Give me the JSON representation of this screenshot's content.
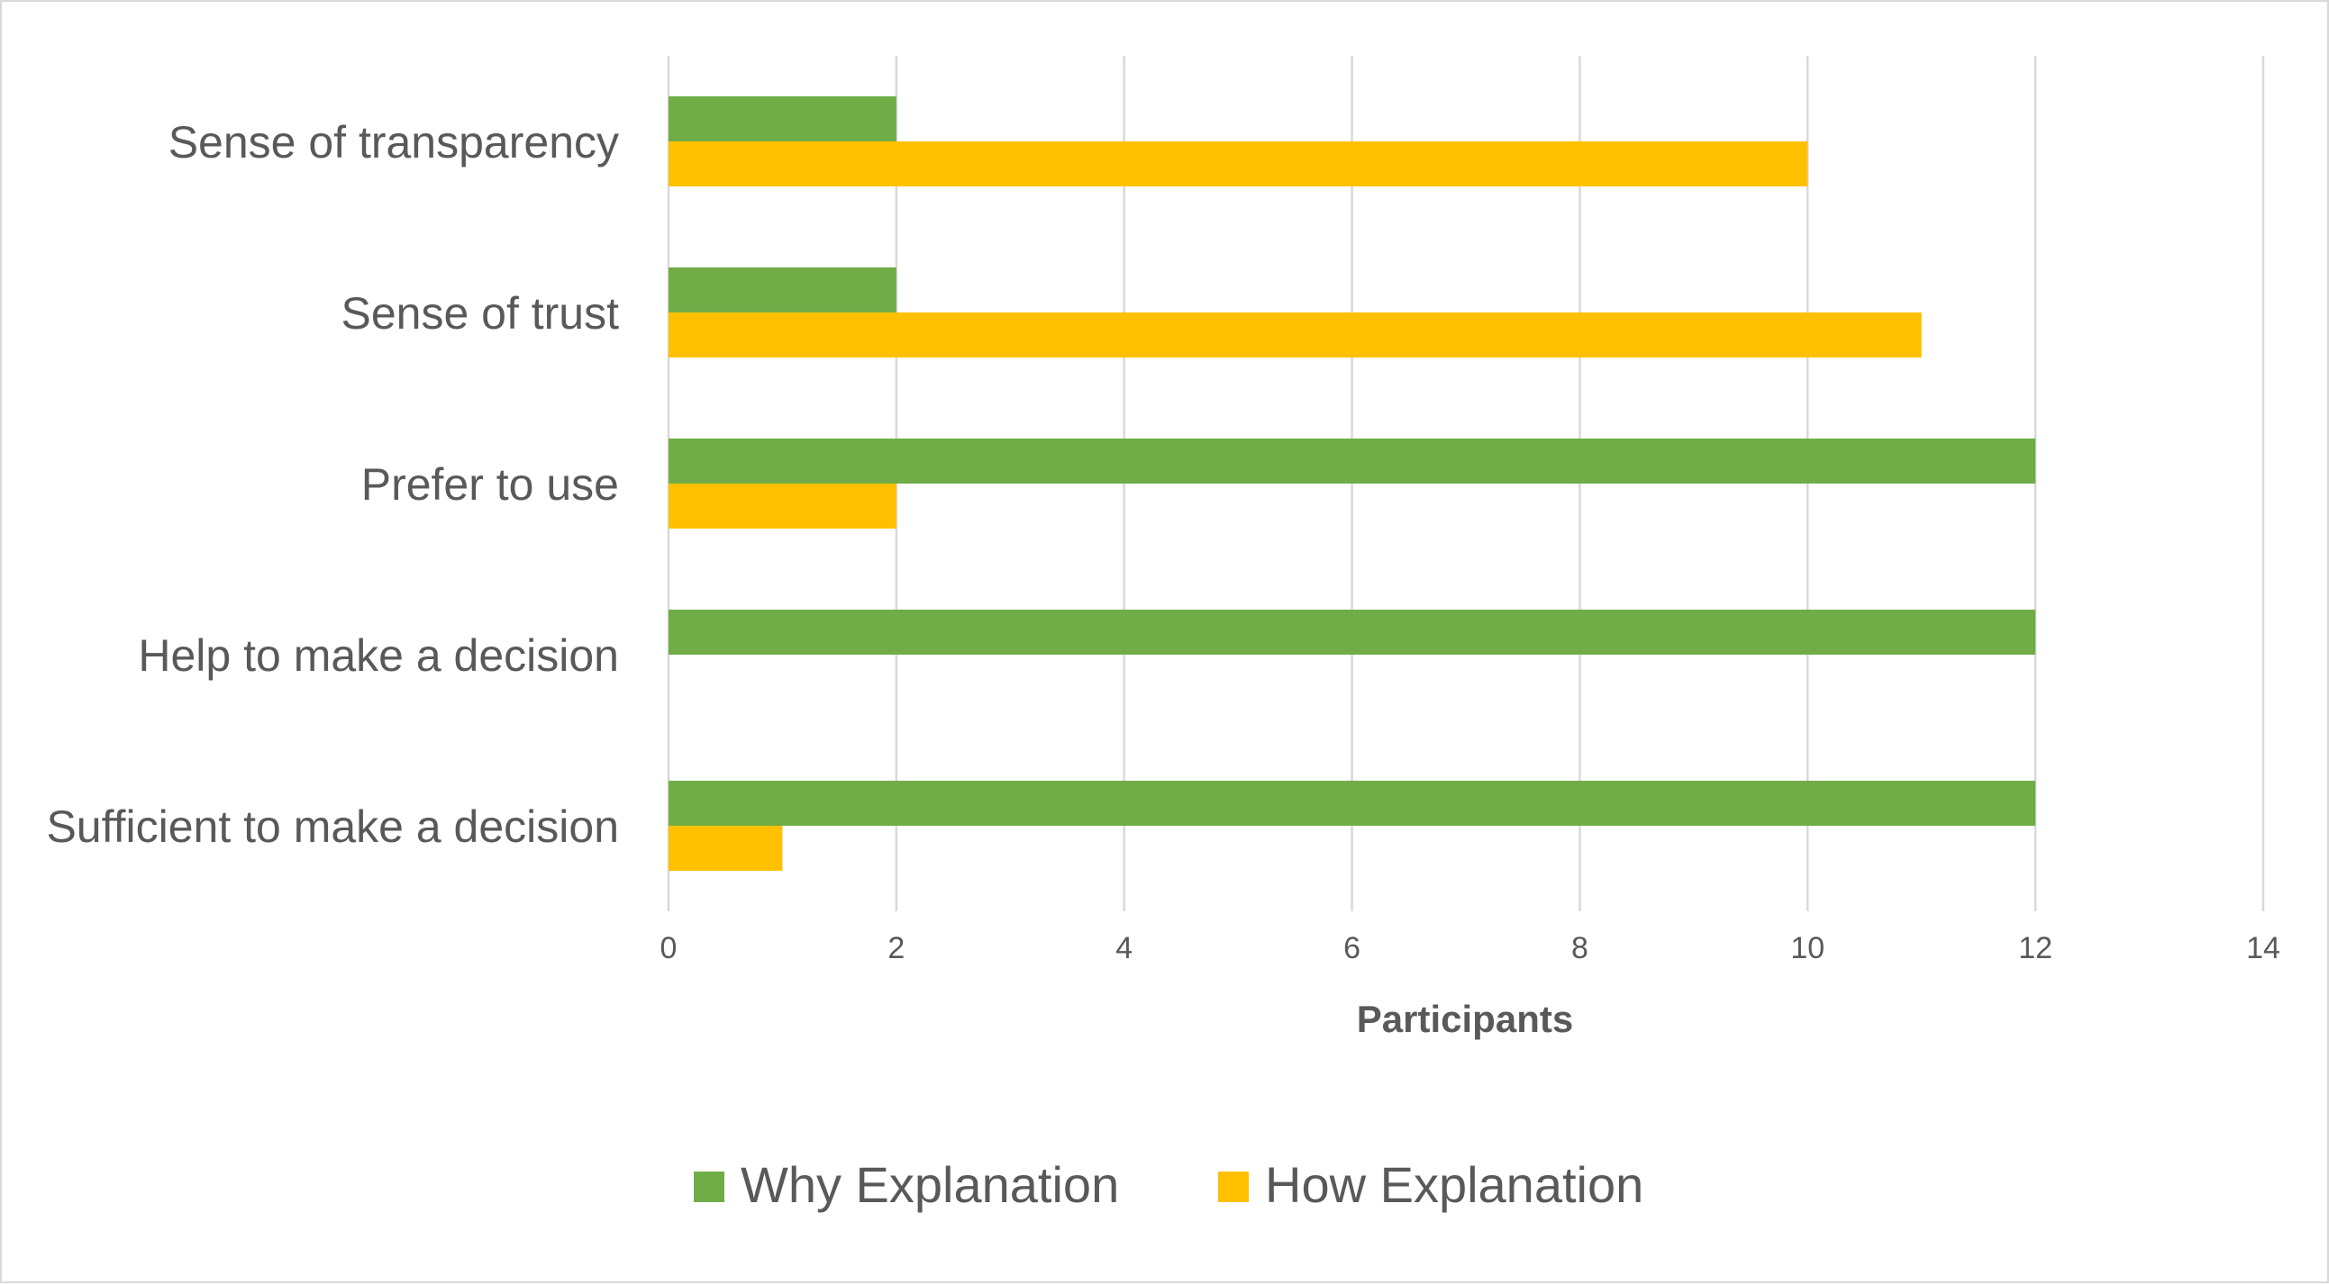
{
  "chart_data": {
    "type": "bar",
    "orientation": "horizontal",
    "categories": [
      "Sense of transparency",
      "Sense of trust",
      "Prefer to use",
      "Help to make a decision",
      "Sufficient to make a decision"
    ],
    "series": [
      {
        "name": "Why Explanation",
        "color": "#70ad47",
        "values": [
          2,
          2,
          12,
          12,
          12
        ]
      },
      {
        "name": "How Explanation",
        "color": "#ffc000",
        "values": [
          10,
          11,
          2,
          0,
          1
        ]
      }
    ],
    "xlabel": "Participants",
    "ylabel": "",
    "xlim": [
      0,
      14
    ],
    "xticks": [
      "0",
      "2",
      "4",
      "6",
      "8",
      "10",
      "12",
      "14"
    ],
    "grid": "vertical",
    "legend": "bottom"
  }
}
